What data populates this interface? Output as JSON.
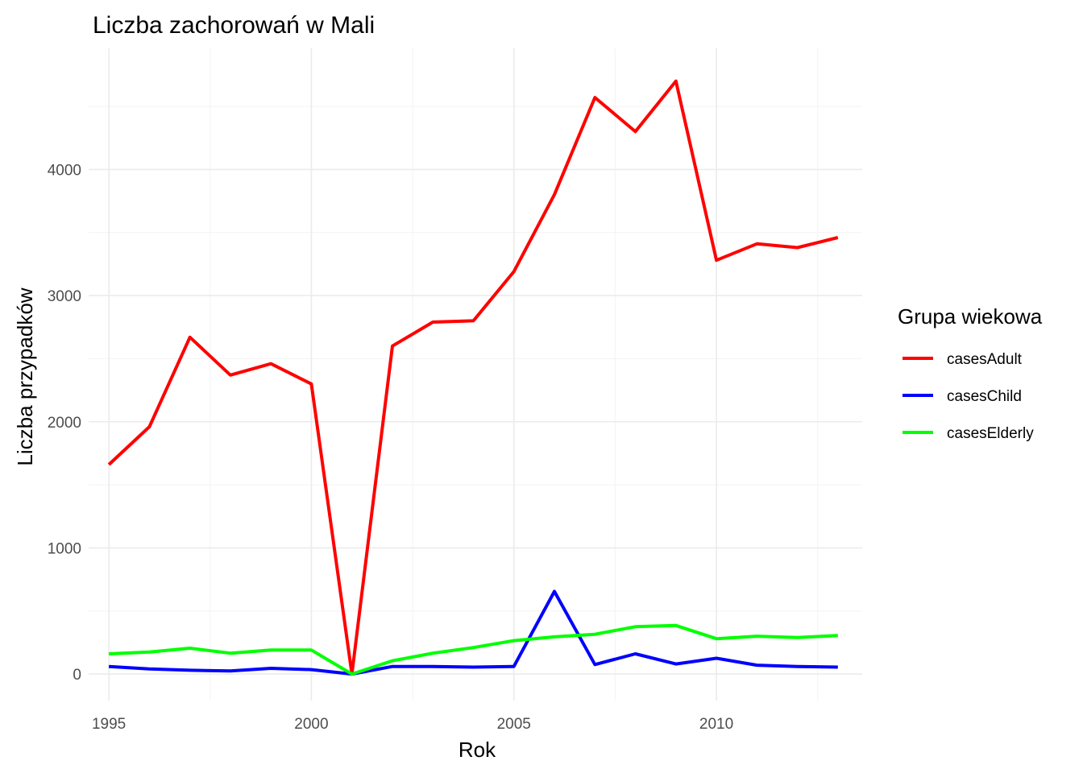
{
  "chart_data": {
    "type": "line",
    "title": "Liczba zachorowań w Mali",
    "xlabel": "Rok",
    "ylabel": "Liczba przypadków",
    "x": [
      1995,
      1996,
      1997,
      1998,
      1999,
      2000,
      2001,
      2002,
      2003,
      2004,
      2005,
      2006,
      2007,
      2008,
      2009,
      2010,
      2011,
      2012,
      2013
    ],
    "series": [
      {
        "name": "casesAdult",
        "color": "#ff0000",
        "values": [
          1660,
          1960,
          2670,
          2370,
          2460,
          2300,
          0,
          2600,
          2790,
          2800,
          3190,
          3800,
          4570,
          4300,
          4700,
          3280,
          3410,
          3380,
          3460
        ]
      },
      {
        "name": "casesChild",
        "color": "#0000ff",
        "values": [
          60,
          40,
          30,
          25,
          45,
          35,
          0,
          60,
          60,
          55,
          60,
          655,
          75,
          160,
          80,
          125,
          70,
          60,
          55
        ]
      },
      {
        "name": "casesElderly",
        "color": "#00ff00",
        "values": [
          160,
          175,
          205,
          165,
          190,
          190,
          0,
          105,
          165,
          210,
          265,
          295,
          315,
          375,
          385,
          280,
          300,
          290,
          305
        ]
      }
    ],
    "xlim": [
      1994.5,
      2013.6
    ],
    "ylim": [
      -210,
      4960
    ],
    "xticks": [
      1995,
      2000,
      2005,
      2010
    ],
    "xtick_labels": [
      "1995",
      "2000",
      "2005",
      "2010"
    ],
    "yticks": [
      0,
      1000,
      2000,
      3000,
      4000
    ],
    "ytick_labels": [
      "0",
      "1000",
      "2000",
      "3000",
      "4000"
    ],
    "grid": true,
    "legend": {
      "title": "Grupa wiekowa",
      "placement": "right"
    }
  }
}
